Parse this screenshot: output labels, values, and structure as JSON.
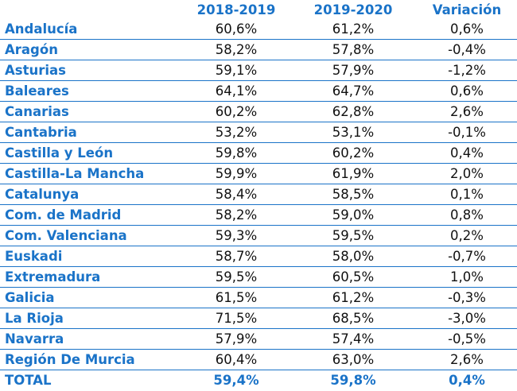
{
  "chart_data": {
    "type": "table",
    "columns": [
      "",
      "2018-2019",
      "2019-2020",
      "Variación"
    ],
    "rows": [
      {
        "region": "Andalucía",
        "y2018_2019": "60,6%",
        "y2019_2020": "61,2%",
        "variacion": "0,6%"
      },
      {
        "region": "Aragón",
        "y2018_2019": "58,2%",
        "y2019_2020": "57,8%",
        "variacion": "-0,4%"
      },
      {
        "region": "Asturias",
        "y2018_2019": "59,1%",
        "y2019_2020": "57,9%",
        "variacion": "-1,2%"
      },
      {
        "region": "Baleares",
        "y2018_2019": "64,1%",
        "y2019_2020": "64,7%",
        "variacion": "0,6%"
      },
      {
        "region": "Canarias",
        "y2018_2019": "60,2%",
        "y2019_2020": "62,8%",
        "variacion": "2,6%"
      },
      {
        "region": "Cantabria",
        "y2018_2019": "53,2%",
        "y2019_2020": "53,1%",
        "variacion": "-0,1%"
      },
      {
        "region": "Castilla y León",
        "y2018_2019": "59,8%",
        "y2019_2020": "60,2%",
        "variacion": "0,4%"
      },
      {
        "region": "Castilla-La Mancha",
        "y2018_2019": "59,9%",
        "y2019_2020": "61,9%",
        "variacion": "2,0%"
      },
      {
        "region": "Catalunya",
        "y2018_2019": "58,4%",
        "y2019_2020": "58,5%",
        "variacion": "0,1%"
      },
      {
        "region": "Com. de Madrid",
        "y2018_2019": "58,2%",
        "y2019_2020": "59,0%",
        "variacion": "0,8%"
      },
      {
        "region": "Com. Valenciana",
        "y2018_2019": "59,3%",
        "y2019_2020": "59,5%",
        "variacion": "0,2%"
      },
      {
        "region": "Euskadi",
        "y2018_2019": "58,7%",
        "y2019_2020": "58,0%",
        "variacion": "-0,7%"
      },
      {
        "region": "Extremadura",
        "y2018_2019": "59,5%",
        "y2019_2020": "60,5%",
        "variacion": "1,0%"
      },
      {
        "region": "Galicia",
        "y2018_2019": "61,5%",
        "y2019_2020": "61,2%",
        "variacion": "-0,3%"
      },
      {
        "region": "La Rioja",
        "y2018_2019": "71,5%",
        "y2019_2020": "68,5%",
        "variacion": "-3,0%"
      },
      {
        "region": "Navarra",
        "y2018_2019": "57,9%",
        "y2019_2020": "57,4%",
        "variacion": "-0,5%"
      },
      {
        "region": "Región De Murcia",
        "y2018_2019": "60,4%",
        "y2019_2020": "63,0%",
        "variacion": "2,6%"
      }
    ],
    "total": {
      "region": "TOTAL",
      "y2018_2019": "59,4%",
      "y2019_2020": "59,8%",
      "variacion": "0,4%"
    },
    "colors": {
      "accent": "#1a73c8",
      "text": "#111111",
      "background": "#ffffff"
    }
  }
}
